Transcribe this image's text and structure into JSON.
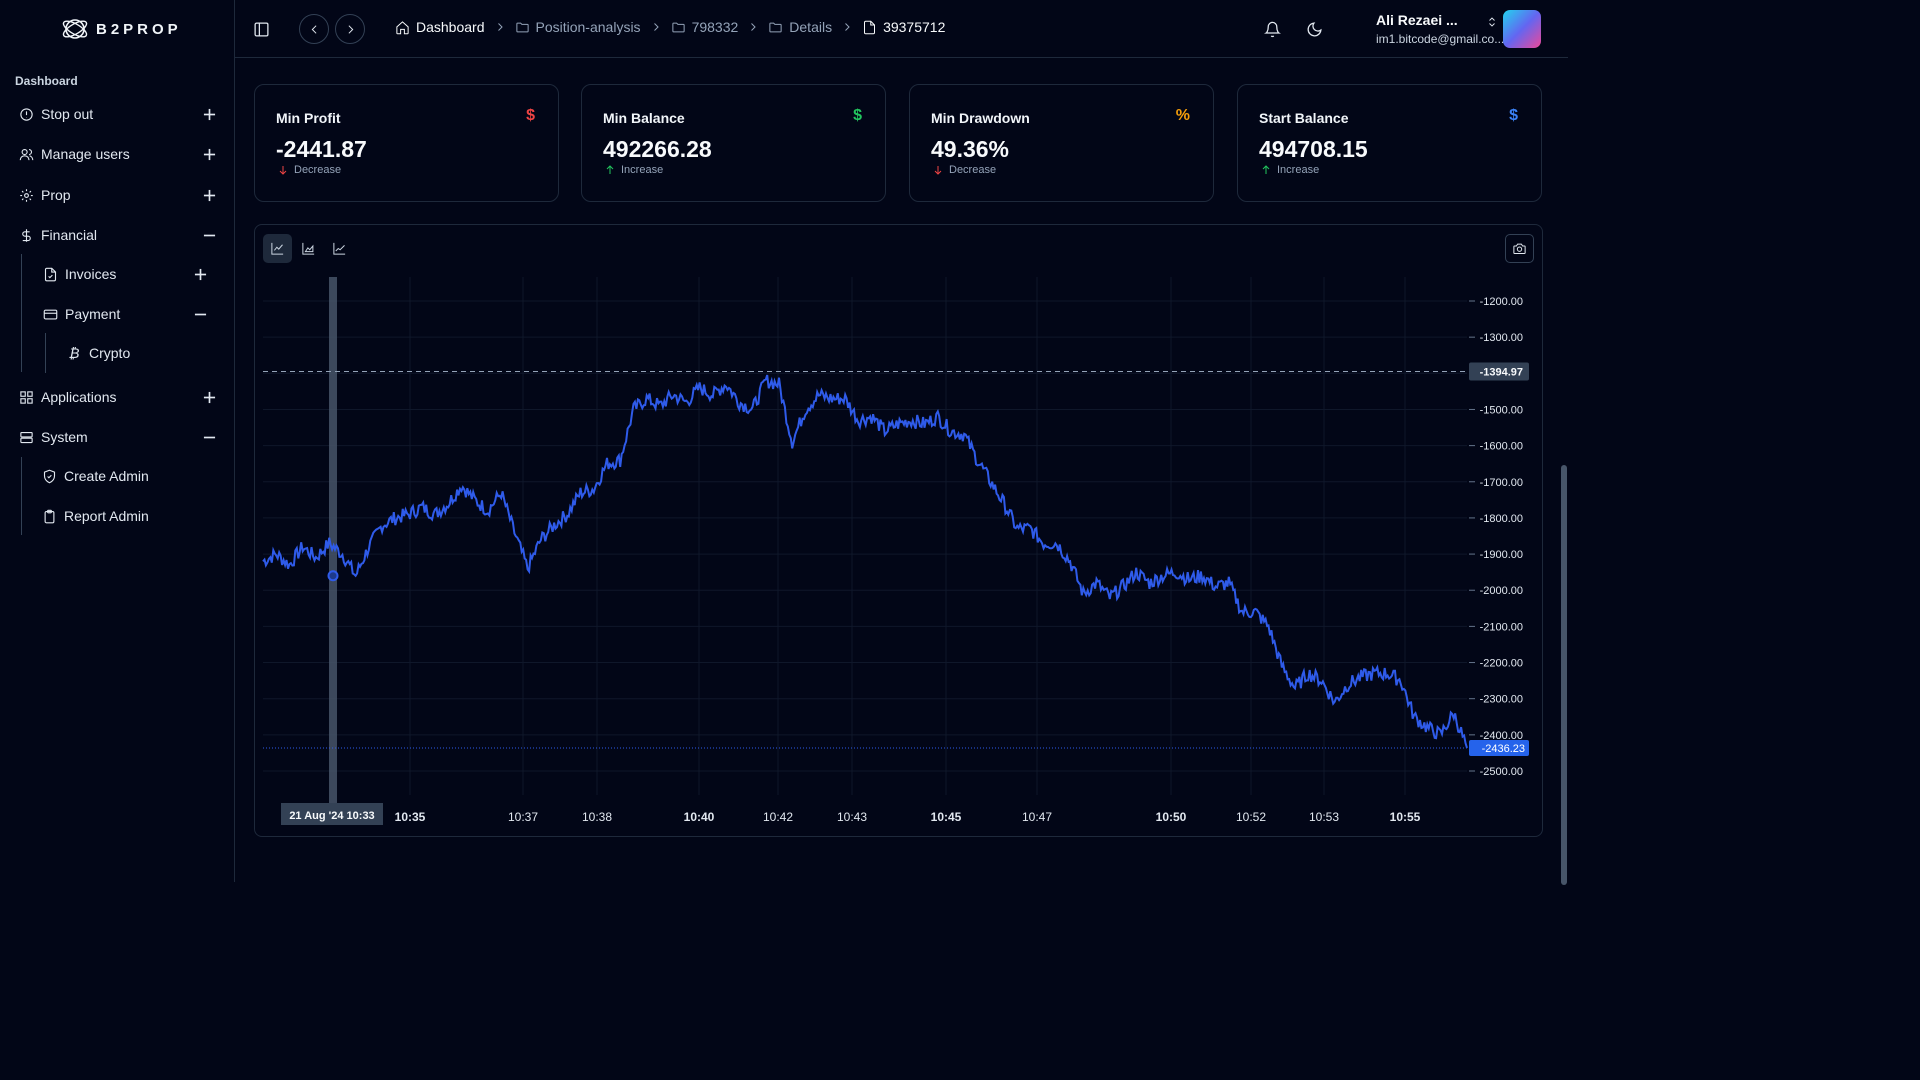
{
  "logo": {
    "text": "B2PROP"
  },
  "sidebar": {
    "section": "Dashboard",
    "items": [
      {
        "label": "Stop out",
        "icon": "alert-circle-icon",
        "toggle": "plus"
      },
      {
        "label": "Manage users",
        "icon": "users-icon",
        "toggle": "plus"
      },
      {
        "label": "Prop",
        "icon": "gear-icon",
        "toggle": "plus"
      },
      {
        "label": "Financial",
        "icon": "dollar-icon",
        "toggle": "minus"
      },
      {
        "label": "Invoices",
        "icon": "file-check-icon",
        "toggle": "plus"
      },
      {
        "label": "Payment",
        "icon": "credit-card-icon",
        "toggle": "minus"
      },
      {
        "label": "Crypto",
        "icon": "bitcoin-icon"
      },
      {
        "label": "Applications",
        "icon": "grid-icon",
        "toggle": "plus"
      },
      {
        "label": "System",
        "icon": "server-icon",
        "toggle": "minus"
      },
      {
        "label": "Create Admin",
        "icon": "shield-check-icon"
      },
      {
        "label": "Report Admin",
        "icon": "clipboard-icon"
      }
    ]
  },
  "breadcrumb": [
    {
      "label": "Dashboard",
      "icon": "home-icon"
    },
    {
      "label": "Position-analysis",
      "icon": "folder-icon"
    },
    {
      "label": "798332",
      "icon": "folder-icon"
    },
    {
      "label": "Details",
      "icon": "folder-icon"
    },
    {
      "label": "39375712",
      "icon": "file-icon"
    }
  ],
  "user": {
    "name": "Ali Rezaei ...",
    "email": "im1.bitcode@gmail.co..."
  },
  "cards": [
    {
      "title": "Min Profit",
      "symbol": "$",
      "symbol_color": "#ef4444",
      "value": "-2441.87",
      "trend": "Decrease",
      "trend_dir": "down"
    },
    {
      "title": "Min Balance",
      "symbol": "$",
      "symbol_color": "#22c55e",
      "value": "492266.28",
      "trend": "Increase",
      "trend_dir": "up"
    },
    {
      "title": "Min Drawdown",
      "symbol": "%",
      "symbol_color": "#f59e0b",
      "value": "49.36%",
      "trend": "Decrease",
      "trend_dir": "down"
    },
    {
      "title": "Start Balance",
      "symbol": "$",
      "symbol_color": "#3b82f6",
      "value": "494708.15",
      "trend": "Increase",
      "trend_dir": "up"
    }
  ],
  "colors": {
    "line": "#2f5bea",
    "up": "#22c55e",
    "down": "#ef4444"
  },
  "chart_data": {
    "type": "line",
    "y_ticks": [
      "-1200.00",
      "-1300.00",
      "-1400.00",
      "-1500.00",
      "-1600.00",
      "-1700.00",
      "-1800.00",
      "-1900.00",
      "-2000.00",
      "-2100.00",
      "-2200.00",
      "-2300.00",
      "-2400.00",
      "-2500.00"
    ],
    "ylim": [
      -2500,
      -1200
    ],
    "x_ticks": [
      {
        "label": "10:35",
        "bold": true
      },
      {
        "label": "10:37",
        "bold": false
      },
      {
        "label": "10:38",
        "bold": false
      },
      {
        "label": "10:40",
        "bold": true
      },
      {
        "label": "10:42",
        "bold": false
      },
      {
        "label": "10:43",
        "bold": false
      },
      {
        "label": "10:45",
        "bold": true
      },
      {
        "label": "10:47",
        "bold": false
      },
      {
        "label": "10:50",
        "bold": true
      },
      {
        "label": "10:52",
        "bold": false
      },
      {
        "label": "10:53",
        "bold": false
      },
      {
        "label": "10:55",
        "bold": true
      }
    ],
    "crosshair_time": "21 Aug '24   10:33",
    "crosshair_price": "-1394.97",
    "last_price": "-2436.23",
    "series": [
      {
        "values": [
          -1920,
          -1900,
          -1930,
          -1880,
          -1910,
          -1870,
          -1900,
          -1960,
          -1880,
          -1820,
          -1800,
          -1790,
          -1770,
          -1790,
          -1760,
          -1710,
          -1750,
          -1780,
          -1730,
          -1840,
          -1940,
          -1860,
          -1820,
          -1790,
          -1730,
          -1720,
          -1650,
          -1640,
          -1500,
          -1470,
          -1490,
          -1460,
          -1480,
          -1440,
          -1460,
          -1430,
          -1480,
          -1500,
          -1420,
          -1430,
          -1590,
          -1500,
          -1460,
          -1470,
          -1470,
          -1530,
          -1520,
          -1560,
          -1540,
          -1530,
          -1540,
          -1520,
          -1560,
          -1570,
          -1640,
          -1700,
          -1760,
          -1830,
          -1830,
          -1870,
          -1870,
          -1920,
          -2010,
          -1980,
          -2020,
          -1990,
          -1950,
          -1980,
          -1960,
          -1950,
          -1970,
          -1960,
          -1990,
          -1980,
          -2060,
          -2060,
          -2100,
          -2210,
          -2270,
          -2230,
          -2250,
          -2310,
          -2260,
          -2240,
          -2230,
          -2230,
          -2250,
          -2350,
          -2380,
          -2400,
          -2340,
          -2436
        ]
      }
    ]
  }
}
